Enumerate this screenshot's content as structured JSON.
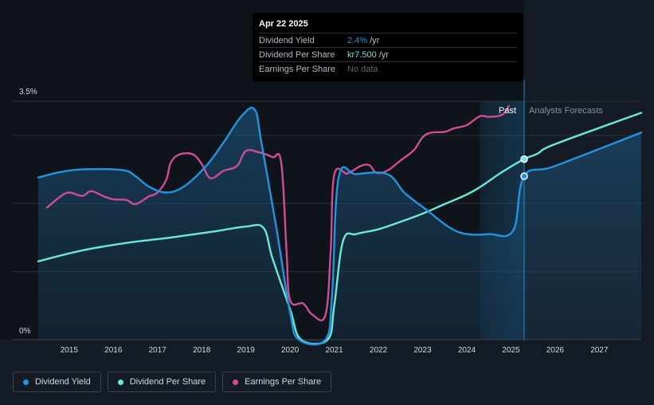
{
  "tooltip": {
    "date": "Apr 22 2025",
    "rows": [
      {
        "label": "Dividend Yield",
        "value": "2.4%",
        "unit": "/yr"
      },
      {
        "label": "Dividend Per Share",
        "value": "kr7.500",
        "unit": "/yr"
      },
      {
        "label": "Earnings Per Share",
        "value": "No data",
        "unit": ""
      }
    ]
  },
  "regions": {
    "past_label": "Past",
    "forecast_label": "Analysts Forecasts"
  },
  "legend": [
    {
      "label": "Dividend Yield",
      "color": "#2394df"
    },
    {
      "label": "Dividend Per Share",
      "color": "#6be8d6"
    },
    {
      "label": "Earnings Per Share",
      "color": "#d04d94"
    }
  ],
  "chart_data": {
    "type": "line",
    "title": "",
    "xlabel": "",
    "ylabel": "",
    "xlim": [
      2014.3,
      2027.95
    ],
    "ylim": [
      0,
      3.5
    ],
    "y_tick_labels": [
      {
        "value": 0,
        "label": "0%"
      },
      {
        "value": 3.5,
        "label": "3.5%"
      }
    ],
    "x_tick_labels": [
      2015,
      2016,
      2017,
      2018,
      2019,
      2020,
      2021,
      2022,
      2023,
      2024,
      2025,
      2026,
      2027
    ],
    "today": 2025.3,
    "forecast_shade_start": 2024.3,
    "series": [
      {
        "name": "Dividend Yield",
        "color": "#2394df",
        "unit": "%",
        "points": [
          [
            2014.3,
            2.38
          ],
          [
            2014.8,
            2.46
          ],
          [
            2015.3,
            2.5
          ],
          [
            2016.2,
            2.49
          ],
          [
            2016.5,
            2.4
          ],
          [
            2016.8,
            2.25
          ],
          [
            2017.2,
            2.16
          ],
          [
            2017.6,
            2.25
          ],
          [
            2018.1,
            2.55
          ],
          [
            2018.5,
            2.9
          ],
          [
            2018.9,
            3.28
          ],
          [
            2019.2,
            3.38
          ],
          [
            2019.35,
            2.9
          ],
          [
            2019.7,
            1.6
          ],
          [
            2020.0,
            0.4
          ],
          [
            2020.2,
            0.0
          ],
          [
            2020.8,
            0.0
          ],
          [
            2020.95,
            0.65
          ],
          [
            2021.1,
            2.38
          ],
          [
            2021.5,
            2.43
          ],
          [
            2022.2,
            2.43
          ],
          [
            2022.6,
            2.15
          ],
          [
            2023.1,
            1.9
          ],
          [
            2023.6,
            1.65
          ],
          [
            2024.0,
            1.55
          ],
          [
            2024.5,
            1.55
          ],
          [
            2025.05,
            1.6
          ],
          [
            2025.3,
            2.4
          ],
          [
            2026.0,
            2.55
          ],
          [
            2027.95,
            3.04
          ]
        ]
      },
      {
        "name": "Dividend Per Share",
        "color": "#6be8d6",
        "unit": "% scale",
        "points": [
          [
            2014.3,
            1.15
          ],
          [
            2015.3,
            1.31
          ],
          [
            2016.3,
            1.42
          ],
          [
            2017.3,
            1.5
          ],
          [
            2018.3,
            1.59
          ],
          [
            2019.0,
            1.66
          ],
          [
            2019.4,
            1.64
          ],
          [
            2019.6,
            1.2
          ],
          [
            2020.0,
            0.45
          ],
          [
            2020.25,
            0.0
          ],
          [
            2020.85,
            0.0
          ],
          [
            2021.0,
            0.5
          ],
          [
            2021.2,
            1.45
          ],
          [
            2021.5,
            1.55
          ],
          [
            2022.0,
            1.62
          ],
          [
            2022.5,
            1.73
          ],
          [
            2023.0,
            1.85
          ],
          [
            2023.5,
            1.99
          ],
          [
            2024.0,
            2.13
          ],
          [
            2024.3,
            2.24
          ],
          [
            2024.8,
            2.46
          ],
          [
            2025.3,
            2.65
          ],
          [
            2025.6,
            2.73
          ],
          [
            2026.0,
            2.87
          ],
          [
            2027.95,
            3.33
          ]
        ]
      },
      {
        "name": "Earnings Per Share",
        "color": "#d04d94",
        "unit": "% scale",
        "points": [
          [
            2014.5,
            1.94
          ],
          [
            2014.8,
            2.1
          ],
          [
            2015.0,
            2.16
          ],
          [
            2015.3,
            2.11
          ],
          [
            2015.5,
            2.18
          ],
          [
            2015.8,
            2.1
          ],
          [
            2016.0,
            2.06
          ],
          [
            2016.3,
            2.05
          ],
          [
            2016.5,
            1.99
          ],
          [
            2016.8,
            2.1
          ],
          [
            2017.0,
            2.16
          ],
          [
            2017.2,
            2.35
          ],
          [
            2017.3,
            2.6
          ],
          [
            2017.5,
            2.72
          ],
          [
            2017.8,
            2.72
          ],
          [
            2018.0,
            2.58
          ],
          [
            2018.2,
            2.37
          ],
          [
            2018.5,
            2.48
          ],
          [
            2018.8,
            2.55
          ],
          [
            2019.0,
            2.77
          ],
          [
            2019.3,
            2.75
          ],
          [
            2019.6,
            2.68
          ],
          [
            2019.8,
            2.6
          ],
          [
            2019.92,
            1.3
          ],
          [
            2020.0,
            0.58
          ],
          [
            2020.3,
            0.53
          ],
          [
            2020.5,
            0.37
          ],
          [
            2020.8,
            0.36
          ],
          [
            2020.92,
            1.3
          ],
          [
            2021.0,
            2.42
          ],
          [
            2021.3,
            2.44
          ],
          [
            2021.6,
            2.55
          ],
          [
            2021.8,
            2.56
          ],
          [
            2021.95,
            2.45
          ],
          [
            2022.2,
            2.48
          ],
          [
            2022.5,
            2.63
          ],
          [
            2022.8,
            2.78
          ],
          [
            2023.0,
            2.97
          ],
          [
            2023.2,
            3.04
          ],
          [
            2023.5,
            3.05
          ],
          [
            2023.7,
            3.1
          ],
          [
            2024.0,
            3.15
          ],
          [
            2024.3,
            3.28
          ],
          [
            2024.5,
            3.27
          ],
          [
            2024.8,
            3.3
          ],
          [
            2024.95,
            3.43
          ]
        ]
      }
    ],
    "markers": [
      {
        "series": "Dividend Yield",
        "x": 2025.3,
        "y": 2.4
      },
      {
        "series": "Dividend Per Share",
        "x": 2025.3,
        "y": 2.65
      }
    ]
  }
}
